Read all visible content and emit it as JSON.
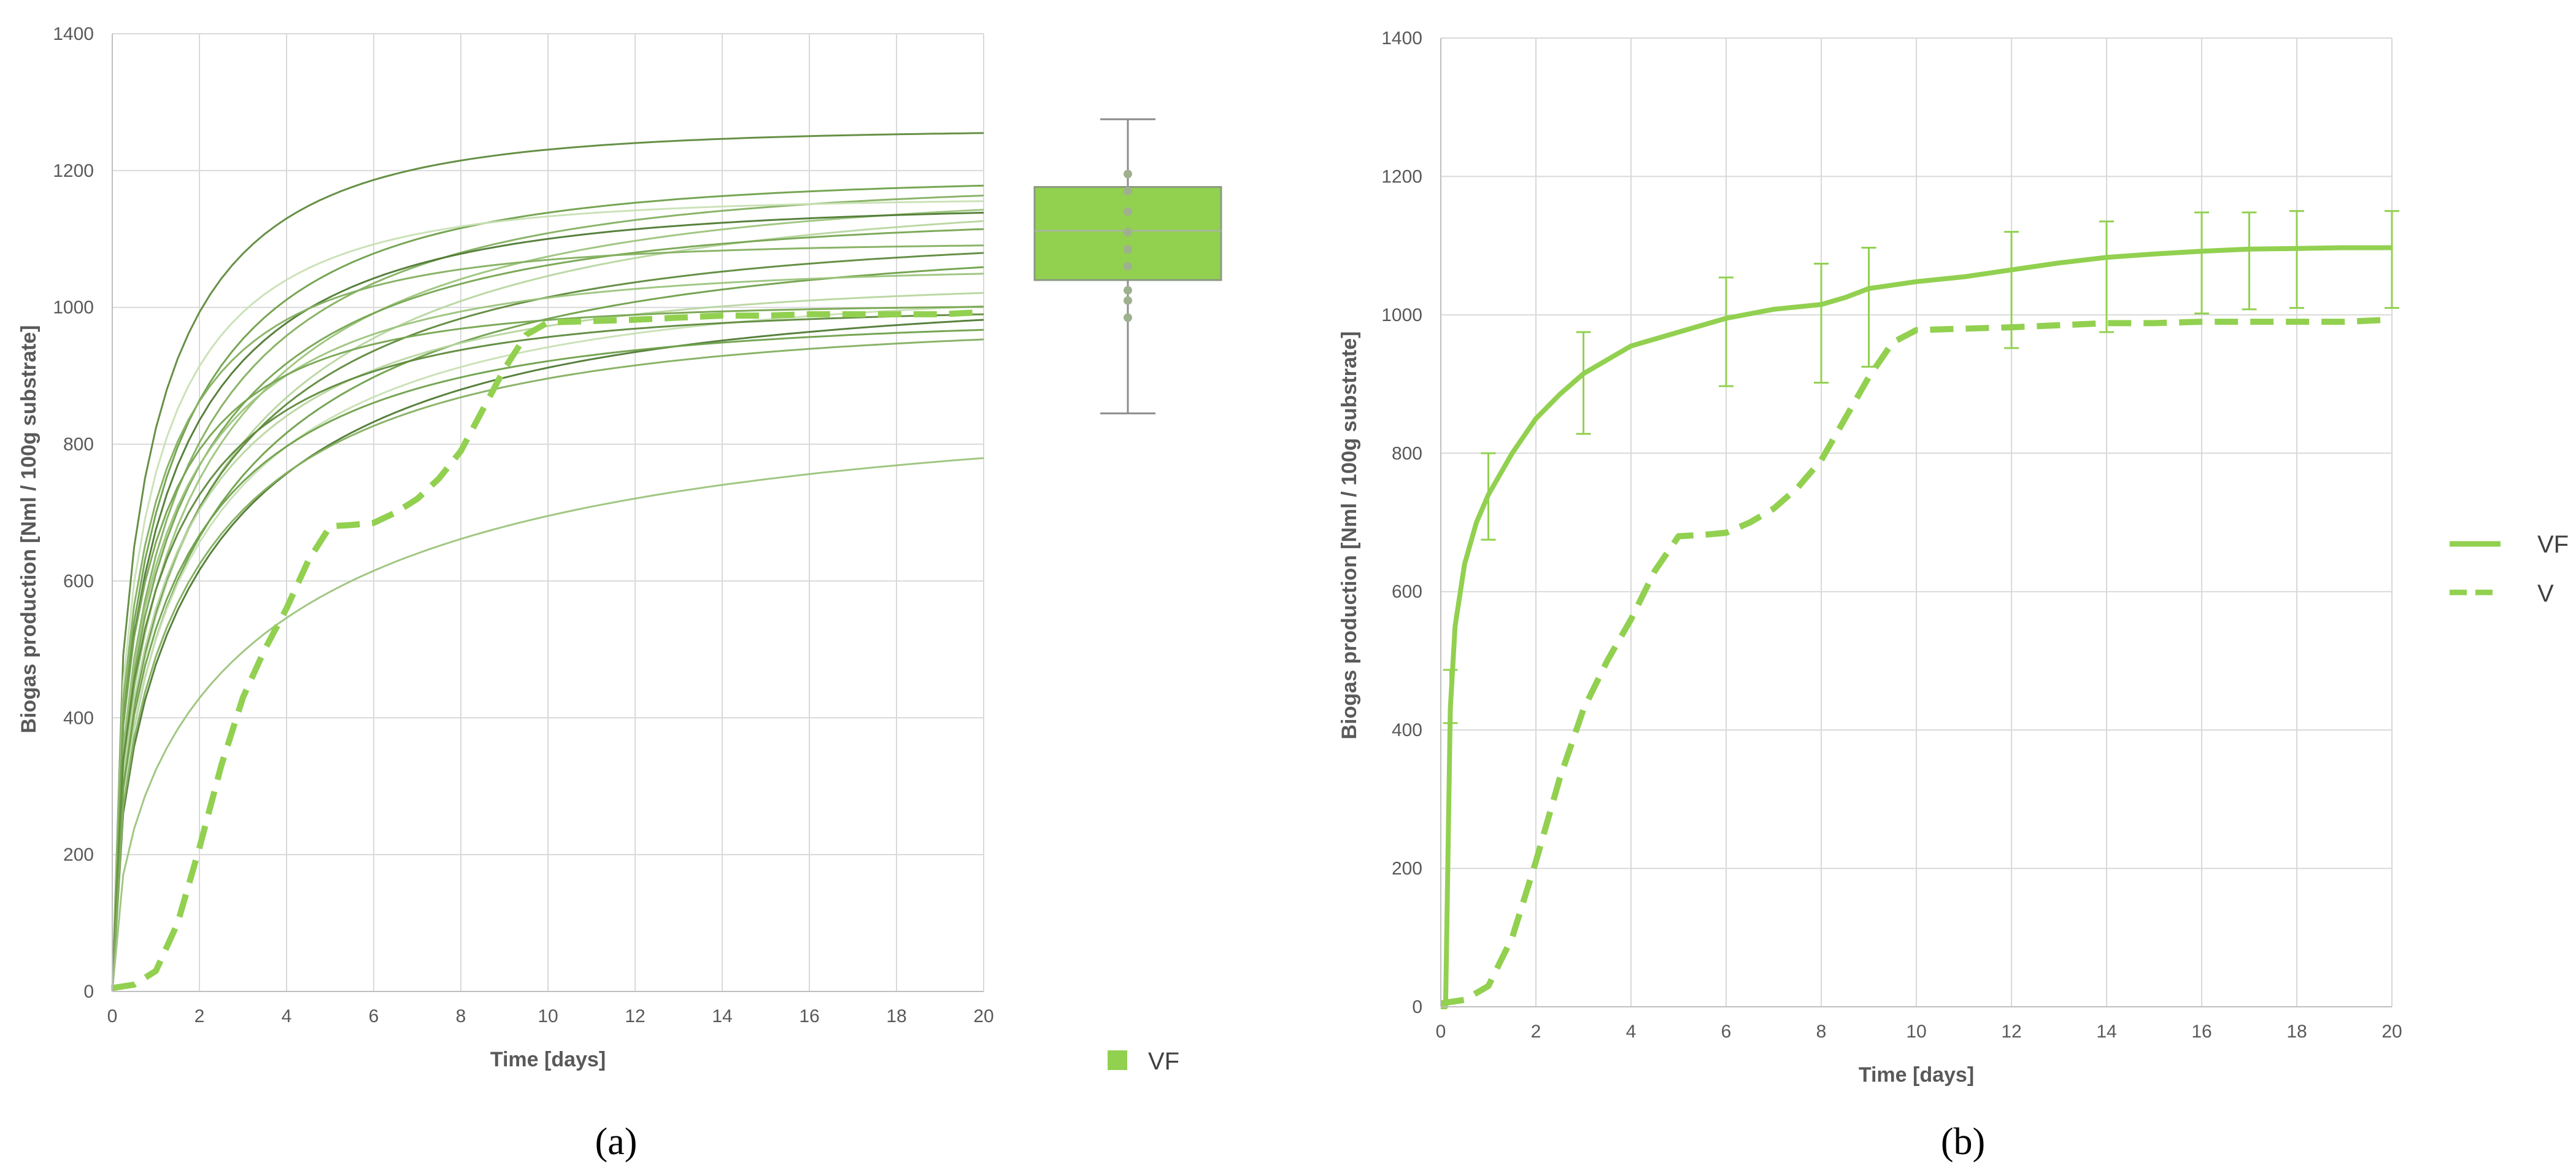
{
  "colors": {
    "vf_main": "#92d050",
    "v_dashed": "#92d050",
    "grid": "#d9d9d9",
    "box_fill": "#92d050",
    "box_edge": "#8a9a80",
    "whisker": "#8c8c8c",
    "point": "#9fb08f",
    "individual_curves": [
      "#5e8a3c",
      "#6fa04a",
      "#84b060",
      "#9cc47c",
      "#b8d6a0",
      "#c8e0b4",
      "#4f7a33",
      "#76a550"
    ]
  },
  "chart_data": [
    {
      "panel": "a",
      "type": "line",
      "panel_label": "(a)",
      "xlabel": "Time [days]",
      "ylabel": "Biogas production [Nml / 100g substrate]",
      "xlim": [
        0,
        20
      ],
      "ylim": [
        0,
        1400
      ],
      "xticks": [
        "0",
        "2",
        "4",
        "6",
        "8",
        "10",
        "12",
        "14",
        "16",
        "18",
        "20"
      ],
      "yticks": [
        "0",
        "200",
        "400",
        "600",
        "800",
        "1000",
        "1200",
        "1400"
      ],
      "grid": true,
      "individual_series_final_values": [
        1260,
        1190,
        1185,
        1175,
        1170,
        1160,
        1150,
        1135,
        1110,
        1100,
        1095,
        1060,
        1040,
        1030,
        1020,
        1005,
        1000,
        985,
        980,
        850
      ],
      "series": [
        {
          "name": "V",
          "style": "dashed",
          "x": [
            0,
            0.5,
            1,
            1.5,
            2,
            2.5,
            3,
            3.5,
            4,
            4.5,
            5,
            5.5,
            6,
            6.5,
            7,
            7.5,
            8,
            8.5,
            9,
            9.5,
            10,
            11,
            12,
            13,
            14,
            15,
            16,
            17,
            18,
            19,
            20
          ],
          "y": [
            5,
            10,
            30,
            100,
            210,
            330,
            430,
            500,
            560,
            630,
            680,
            682,
            685,
            700,
            720,
            750,
            790,
            850,
            910,
            960,
            978,
            980,
            982,
            985,
            988,
            988,
            990,
            990,
            990,
            990,
            993
          ]
        }
      ],
      "boxplot": {
        "legend": "VF",
        "min": 845,
        "q1": 1040,
        "median": 1112,
        "q3": 1176,
        "max": 1275,
        "points": [
          985,
          1010,
          1025,
          1060,
          1085,
          1110,
          1140,
          1170,
          1195
        ]
      }
    },
    {
      "panel": "b",
      "type": "line",
      "panel_label": "(b)",
      "xlabel": "Time [days]",
      "ylabel": "Biogas production [Nml / 100g substrate]",
      "xlim": [
        0,
        20
      ],
      "ylim": [
        0,
        1400
      ],
      "xticks": [
        "0",
        "2",
        "4",
        "6",
        "8",
        "10",
        "12",
        "14",
        "16",
        "18",
        "20"
      ],
      "yticks": [
        "0",
        "200",
        "400",
        "600",
        "800",
        "1000",
        "1200",
        "1400"
      ],
      "grid": true,
      "legend_position": "right",
      "series": [
        {
          "name": "VF",
          "style": "solid",
          "x": [
            0,
            0.1,
            0.2,
            0.3,
            0.5,
            0.75,
            1,
            1.5,
            2,
            2.5,
            3,
            3.5,
            4,
            5,
            6,
            7,
            8,
            8.5,
            9,
            10,
            11,
            12,
            13,
            14,
            15,
            16,
            17,
            18,
            19,
            20
          ],
          "y": [
            0,
            0,
            430,
            550,
            640,
            700,
            740,
            800,
            850,
            885,
            915,
            935,
            955,
            975,
            995,
            1008,
            1015,
            1025,
            1038,
            1048,
            1055,
            1065,
            1075,
            1083,
            1088,
            1092,
            1095,
            1096,
            1097,
            1097
          ],
          "error_bars": [
            {
              "x": 0.2,
              "low": 410,
              "high": 487
            },
            {
              "x": 1,
              "low": 675,
              "high": 800
            },
            {
              "x": 3,
              "low": 828,
              "high": 975
            },
            {
              "x": 6,
              "low": 897,
              "high": 1054
            },
            {
              "x": 8,
              "low": 902,
              "high": 1074
            },
            {
              "x": 9,
              "low": 925,
              "high": 1097
            },
            {
              "x": 12,
              "low": 952,
              "high": 1120
            },
            {
              "x": 14,
              "low": 975,
              "high": 1135
            },
            {
              "x": 16,
              "low": 1002,
              "high": 1148
            },
            {
              "x": 17,
              "low": 1008,
              "high": 1148
            },
            {
              "x": 18,
              "low": 1010,
              "high": 1150
            },
            {
              "x": 20,
              "low": 1010,
              "high": 1150
            }
          ]
        },
        {
          "name": "V",
          "style": "dashed",
          "x": [
            0,
            0.5,
            1,
            1.5,
            2,
            2.5,
            3,
            3.5,
            4,
            4.5,
            5,
            5.5,
            6,
            6.5,
            7,
            7.5,
            8,
            8.5,
            9,
            9.5,
            10,
            11,
            12,
            13,
            14,
            15,
            16,
            17,
            18,
            19,
            20
          ],
          "y": [
            5,
            10,
            30,
            100,
            210,
            330,
            430,
            500,
            560,
            630,
            680,
            682,
            685,
            700,
            720,
            750,
            790,
            850,
            910,
            960,
            978,
            980,
            982,
            985,
            988,
            988,
            990,
            990,
            990,
            990,
            993
          ]
        }
      ]
    }
  ]
}
